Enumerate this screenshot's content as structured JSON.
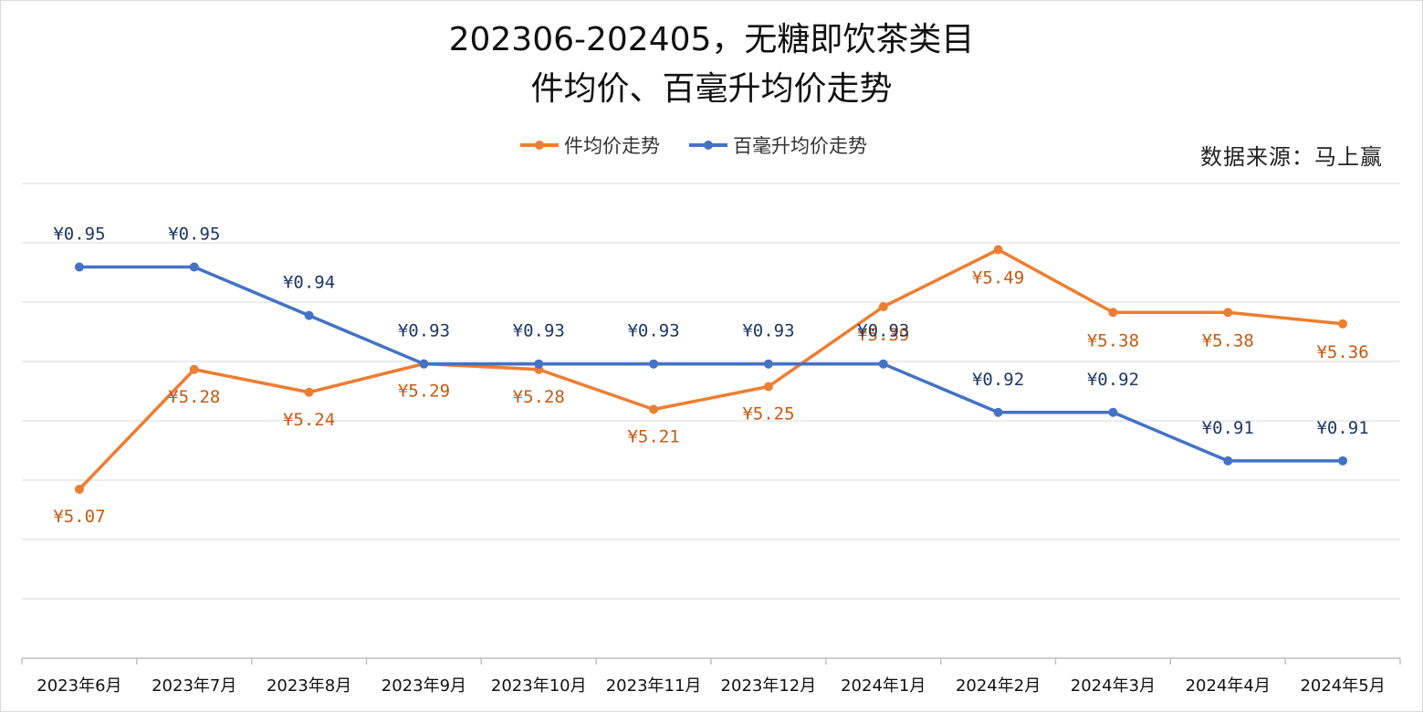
{
  "chart_data": {
    "type": "line",
    "title": "202306-202405，无糖即饮茶类目",
    "subtitle": "件均价、百毫升均价走势",
    "source": "数据来源：马上赢",
    "categories": [
      "2023年6月",
      "2023年7月",
      "2023年8月",
      "2023年9月",
      "2023年10月",
      "2023年11月",
      "2023年12月",
      "2024年1月",
      "2024年2月",
      "2024年3月",
      "2024年4月",
      "2024年5月"
    ],
    "series": [
      {
        "name": "件均价走势",
        "color": "#ed7d31",
        "values": [
          5.07,
          5.28,
          5.24,
          5.29,
          5.28,
          5.21,
          5.25,
          5.39,
          5.49,
          5.38,
          5.38,
          5.36
        ],
        "labels": [
          "¥5.07",
          "¥5.28",
          "¥5.24",
          "¥5.29",
          "¥5.28",
          "¥5.21",
          "¥5.25",
          "¥5.39",
          "¥5.49",
          "¥5.38",
          "¥5.38",
          "¥5.36"
        ],
        "label_color": "#c55a11"
      },
      {
        "name": "百毫升均价走势",
        "color": "#4472c4",
        "values": [
          0.95,
          0.95,
          0.94,
          0.93,
          0.93,
          0.93,
          0.93,
          0.93,
          0.92,
          0.92,
          0.91,
          0.91
        ],
        "labels": [
          "¥0.95",
          "¥0.95",
          "¥0.94",
          "¥0.93",
          "¥0.93",
          "¥0.93",
          "¥0.93",
          "¥0.93",
          "¥0.92",
          "¥0.92",
          "¥0.91",
          "¥0.91"
        ],
        "label_color": "#1f3864"
      }
    ],
    "grid": true,
    "legend_position": "top-center",
    "xlabel": "",
    "ylabel": ""
  }
}
